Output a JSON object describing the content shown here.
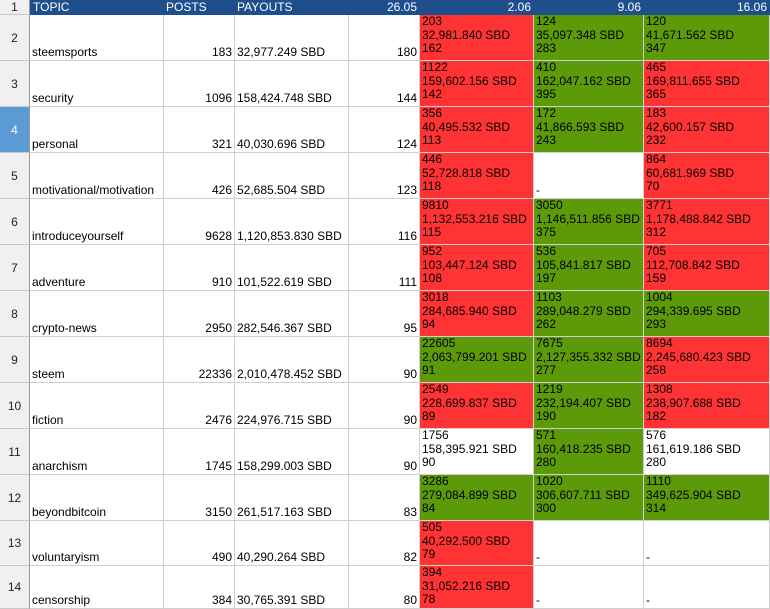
{
  "header": {
    "row_number": "1",
    "topic": "TOPIC",
    "posts": "POSTS",
    "payouts": "PAYOUTS",
    "d1": "26.05",
    "d2": "2.06",
    "d3": "9.06",
    "d4": "16.06"
  },
  "colors": {
    "red": "#ff3333",
    "green": "#5c9a0a",
    "white": "#ffffff",
    "header": "#1f4e8c",
    "selected_row": "#5a9bd5"
  },
  "selected_row": "4",
  "rows": [
    {
      "num": "2",
      "topic": "steemsports",
      "posts": "183",
      "payouts": "32,977.249 SBD",
      "d1": "180",
      "w2": {
        "color": "red",
        "a": "203",
        "b": "32,981.840 SBD",
        "c": "162"
      },
      "w3": {
        "color": "green",
        "a": "124",
        "b": "35,097.348 SBD",
        "c": "283"
      },
      "w4": {
        "color": "green",
        "a": "120",
        "b": "41,671.562 SBD",
        "c": "347"
      }
    },
    {
      "num": "3",
      "topic": "security",
      "posts": "1096",
      "payouts": "158,424.748 SBD",
      "d1": "144",
      "w2": {
        "color": "red",
        "a": "1122",
        "b": "159,602.156 SBD",
        "c": "142"
      },
      "w3": {
        "color": "green",
        "a": "410",
        "b": "162,047.162 SBD",
        "c": "395"
      },
      "w4": {
        "color": "red",
        "a": "465",
        "b": "169,811.655 SBD",
        "c": "365"
      }
    },
    {
      "num": "4",
      "topic": "personal",
      "posts": "321",
      "payouts": "40,030.696 SBD",
      "d1": "124",
      "w2": {
        "color": "red",
        "a": "356",
        "b": "40,495.532 SBD",
        "c": "113"
      },
      "w3": {
        "color": "green",
        "a": "172",
        "b": "41,866.593 SBD",
        "c": "243"
      },
      "w4": {
        "color": "red",
        "a": "183",
        "b": "42,600.157 SBD",
        "c": "232"
      }
    },
    {
      "num": "5",
      "topic": "motivational/motivation",
      "posts": "426",
      "payouts": "52,685.504 SBD",
      "d1": "123",
      "w2": {
        "color": "red",
        "a": "446",
        "b": "52,728.818 SBD",
        "c": "118"
      },
      "w3": {
        "color": "white",
        "dash": "-"
      },
      "w4": {
        "color": "red",
        "a": "864",
        "b": "60,681.969 SBD",
        "c": "70"
      }
    },
    {
      "num": "6",
      "topic": "introduceyourself",
      "posts": "9628",
      "payouts": "1,120,853.830 SBD",
      "d1": "116",
      "w2": {
        "color": "red",
        "a": "9810",
        "b": "1,132,553.216 SBD",
        "c": "115"
      },
      "w3": {
        "color": "green",
        "a": "3050",
        "b": "1,146,511.856 SBD",
        "c": "375"
      },
      "w4": {
        "color": "red",
        "a": "3771",
        "b": "1,178,488.842 SBD",
        "c": "312"
      }
    },
    {
      "num": "7",
      "topic": "adventure",
      "posts": "910",
      "payouts": "101,522.619 SBD",
      "d1": "111",
      "w2": {
        "color": "red",
        "a": "952",
        "b": "103,447.124 SBD",
        "c": "108"
      },
      "w3": {
        "color": "green",
        "a": "536",
        "b": "105,841.817 SBD",
        "c": "197"
      },
      "w4": {
        "color": "red",
        "a": "705",
        "b": "112,708.842 SBD",
        "c": "159"
      }
    },
    {
      "num": "8",
      "topic": "crypto-news",
      "posts": "2950",
      "payouts": "282,546.367 SBD",
      "d1": "95",
      "w2": {
        "color": "red",
        "a": "3018",
        "b": "284,685.940 SBD",
        "c": "94"
      },
      "w3": {
        "color": "green",
        "a": "1103",
        "b": "289,048.279 SBD",
        "c": "262"
      },
      "w4": {
        "color": "green",
        "a": "1004",
        "b": "294,339.695 SBD",
        "c": "293"
      }
    },
    {
      "num": "9",
      "topic": "steem",
      "posts": "22336",
      "payouts": "2,010,478.452 SBD",
      "d1": "90",
      "w2": {
        "color": "green",
        "a": "22605",
        "b": "2,063,799.201 SBD",
        "c": "91"
      },
      "w3": {
        "color": "green",
        "a": "7675",
        "b": "2,127,355.332 SBD",
        "c": "277"
      },
      "w4": {
        "color": "red",
        "a": "8694",
        "b": "2,245,680.423 SBD",
        "c": "258"
      }
    },
    {
      "num": "10",
      "topic": "fiction",
      "posts": "2476",
      "payouts": "224,976.715 SBD",
      "d1": "90",
      "w2": {
        "color": "red",
        "a": "2549",
        "b": "228,699.837 SBD",
        "c": "89"
      },
      "w3": {
        "color": "green",
        "a": "1219",
        "b": "232,194.407 SBD",
        "c": "190"
      },
      "w4": {
        "color": "red",
        "a": "1308",
        "b": "238,907.688 SBD",
        "c": "182"
      }
    },
    {
      "num": "11",
      "topic": "anarchism",
      "posts": "1745",
      "payouts": "158,299.003 SBD",
      "d1": "90",
      "w2": {
        "color": "white",
        "a": "1756",
        "b": "158,395.921 SBD",
        "c": "90"
      },
      "w3": {
        "color": "green",
        "a": "571",
        "b": "160,418.235 SBD",
        "c": "280"
      },
      "w4": {
        "color": "white",
        "a": "576",
        "b": "161,619.186 SBD",
        "c": "280"
      }
    },
    {
      "num": "12",
      "topic": "beyondbitcoin",
      "posts": "3150",
      "payouts": "261,517.163 SBD",
      "d1": "83",
      "w2": {
        "color": "green",
        "a": "3286",
        "b": "279,084.899 SBD",
        "c": "84"
      },
      "w3": {
        "color": "green",
        "a": "1020",
        "b": "306,607.711 SBD",
        "c": "300"
      },
      "w4": {
        "color": "green",
        "a": "1110",
        "b": "349,625.904 SBD",
        "c": "314"
      }
    },
    {
      "num": "13",
      "topic": "voluntaryism",
      "posts": "490",
      "payouts": "40,290.264 SBD",
      "d1": "82",
      "w2": {
        "color": "red",
        "a": "505",
        "b": "40,292.500 SBD",
        "c": "79"
      },
      "w3": {
        "color": "white",
        "dash": "-"
      },
      "w4": {
        "color": "white",
        "dash": "-"
      }
    },
    {
      "num": "14",
      "topic": "censorship",
      "posts": "384",
      "payouts": "30,765.391 SBD",
      "d1": "80",
      "w2": {
        "color": "red",
        "a": "394",
        "b": "31,052.216 SBD",
        "c": "78"
      },
      "w3": {
        "color": "white",
        "dash": "-"
      },
      "w4": {
        "color": "white",
        "dash": "-"
      }
    }
  ]
}
